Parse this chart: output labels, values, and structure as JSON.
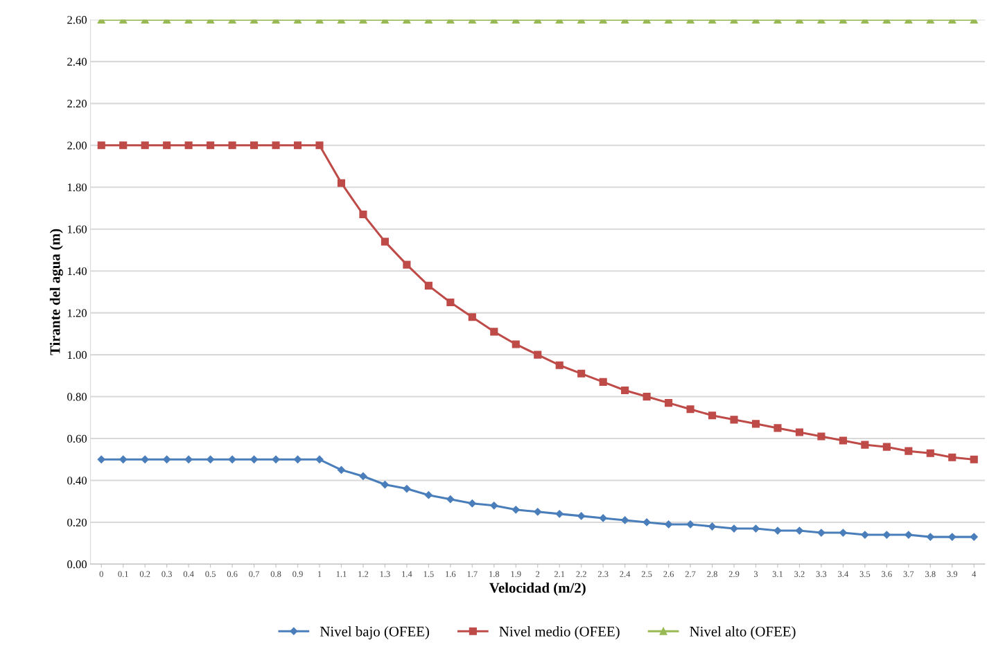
{
  "chart_data": {
    "type": "line",
    "xlabel": "Velocidad (m/2)",
    "ylabel": "Tirante del agua (m)",
    "categories": [
      "0",
      "0.1",
      "0.2",
      "0.3",
      "0.4",
      "0.5",
      "0.6",
      "0.7",
      "0.8",
      "0.9",
      "1",
      "1.1",
      "1.2",
      "1.3",
      "1.4",
      "1.5",
      "1.6",
      "1.7",
      "1.8",
      "1.9",
      "2",
      "2.1",
      "2.2",
      "2.3",
      "2.4",
      "2.5",
      "2.6",
      "2.7",
      "2.8",
      "2.9",
      "3",
      "3.1",
      "3.2",
      "3.3",
      "3.4",
      "3.5",
      "3.6",
      "3.7",
      "3.8",
      "3.9",
      "4"
    ],
    "series": [
      {
        "name": "Nivel bajo (OFEE)",
        "color": "#4a7ebb",
        "marker": "diamond",
        "values": [
          0.5,
          0.5,
          0.5,
          0.5,
          0.5,
          0.5,
          0.5,
          0.5,
          0.5,
          0.5,
          0.5,
          0.45,
          0.42,
          0.38,
          0.36,
          0.33,
          0.31,
          0.29,
          0.28,
          0.26,
          0.25,
          0.24,
          0.23,
          0.22,
          0.21,
          0.2,
          0.19,
          0.19,
          0.18,
          0.17,
          0.17,
          0.16,
          0.16,
          0.15,
          0.15,
          0.14,
          0.14,
          0.14,
          0.13,
          0.13,
          0.13
        ]
      },
      {
        "name": "Nivel medio (OFEE)",
        "color": "#be4b48",
        "marker": "square",
        "values": [
          2.0,
          2.0,
          2.0,
          2.0,
          2.0,
          2.0,
          2.0,
          2.0,
          2.0,
          2.0,
          2.0,
          1.82,
          1.67,
          1.54,
          1.43,
          1.33,
          1.25,
          1.18,
          1.11,
          1.05,
          1.0,
          0.95,
          0.91,
          0.87,
          0.83,
          0.8,
          0.77,
          0.74,
          0.71,
          0.69,
          0.67,
          0.65,
          0.63,
          0.61,
          0.59,
          0.57,
          0.56,
          0.54,
          0.53,
          0.51,
          0.5
        ]
      },
      {
        "name": "Nivel alto (OFEE)",
        "color": "#98b954",
        "marker": "triangle",
        "values": [
          2.6,
          2.6,
          2.6,
          2.6,
          2.6,
          2.6,
          2.6,
          2.6,
          2.6,
          2.6,
          2.6,
          2.6,
          2.6,
          2.6,
          2.6,
          2.6,
          2.6,
          2.6,
          2.6,
          2.6,
          2.6,
          2.6,
          2.6,
          2.6,
          2.6,
          2.6,
          2.6,
          2.6,
          2.6,
          2.6,
          2.6,
          2.6,
          2.6,
          2.6,
          2.6,
          2.6,
          2.6,
          2.6,
          2.6,
          2.6,
          2.6
        ]
      }
    ],
    "ylim": [
      0,
      2.6
    ],
    "yticks": [
      {
        "value": 0,
        "label": "0.00"
      },
      {
        "value": 0.2,
        "label": "0.20"
      },
      {
        "value": 0.4,
        "label": "0.40"
      },
      {
        "value": 0.6,
        "label": "0.60"
      },
      {
        "value": 0.8,
        "label": "0.80"
      },
      {
        "value": 1.0,
        "label": "1.00"
      },
      {
        "value": 1.2,
        "label": "1.20"
      },
      {
        "value": 1.4,
        "label": "1.40"
      },
      {
        "value": 1.6,
        "label": "1.60"
      },
      {
        "value": 1.8,
        "label": "1.80"
      },
      {
        "value": 2.0,
        "label": "2.00"
      },
      {
        "value": 2.2,
        "label": "2.20"
      },
      {
        "value": 2.4,
        "label": "2.40"
      },
      {
        "value": 2.6,
        "label": "2.60"
      }
    ],
    "grid": "y",
    "legend": "bottom",
    "line_style": "solid"
  }
}
